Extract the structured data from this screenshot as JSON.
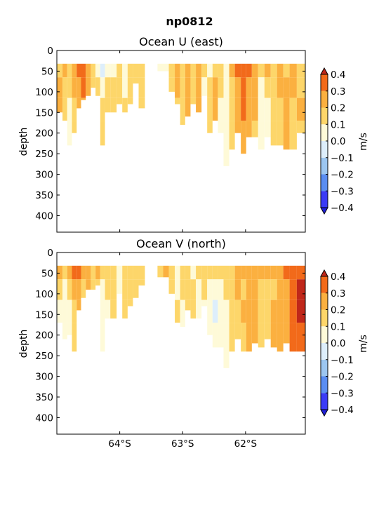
{
  "figure": {
    "title": "np0812"
  },
  "panels": [
    {
      "title": "Ocean U (east)",
      "ylabel": "depth",
      "colorbar_label": "m/s"
    },
    {
      "title": "Ocean V (north)",
      "ylabel": "depth",
      "colorbar_label": "m/s"
    }
  ],
  "colorbar": {
    "levels": [
      -0.4,
      -0.3,
      -0.2,
      -0.1,
      0.0,
      0.1,
      0.2,
      0.3,
      0.4
    ],
    "level_labels": [
      "−0.4",
      "−0.3",
      "−0.2",
      "−0.1",
      "0.0",
      "0.1",
      "0.2",
      "0.3",
      "0.4"
    ],
    "colors": [
      "#3b3bf6",
      "#5a8df2",
      "#9cc6f0",
      "#ddeefb",
      "#fefad8",
      "#fdd66a",
      "#fbb040",
      "#f26a1a"
    ],
    "extend_low_color": "#1f1fd8",
    "extend_high_color": "#c0271a"
  },
  "chart_data": [
    {
      "type": "heatmap",
      "title": "Ocean U (east)",
      "xlabel": "",
      "ylabel": "depth",
      "x_ticks": [
        -64,
        -63,
        -62
      ],
      "x_tick_labels": [
        "64°S",
        "63°S",
        "62°S"
      ],
      "xlim": [
        -65.0,
        -61.05
      ],
      "y_ticks": [
        0,
        50,
        100,
        150,
        200,
        250,
        300,
        350,
        400
      ],
      "ylim": [
        440,
        0
      ],
      "y_inverted": true,
      "units": "m/s",
      "columns": [
        {
          "lat": -64.95,
          "bottom": 150,
          "values": [
            0.1,
            0.2,
            0.2,
            0.2
          ]
        },
        {
          "lat": -64.87,
          "bottom": 170,
          "values": [
            0.2,
            0.1,
            0.1,
            0.1
          ]
        },
        {
          "lat": -64.8,
          "bottom": 230,
          "values": [
            0.1,
            0.1,
            0.0,
            0.0
          ]
        },
        {
          "lat": -64.72,
          "bottom": 200,
          "values": [
            0.2,
            0.2,
            0.1,
            0.1
          ]
        },
        {
          "lat": -64.65,
          "bottom": 140,
          "values": [
            0.3,
            0.2,
            0.2,
            0.1
          ]
        },
        {
          "lat": -64.58,
          "bottom": 120,
          "values": [
            0.3,
            0.3,
            0.2,
            0.1
          ]
        },
        {
          "lat": -64.5,
          "bottom": 110,
          "values": [
            0.2,
            0.2,
            0.1,
            0.1
          ]
        },
        {
          "lat": -64.42,
          "bottom": 90,
          "values": [
            0.1,
            0.1,
            0.1,
            0.1
          ]
        },
        {
          "lat": -64.35,
          "bottom": 110,
          "values": [
            0.0,
            0.1,
            0.1,
            0.1
          ]
        },
        {
          "lat": -64.27,
          "bottom": 230,
          "values": [
            -0.1,
            0.0,
            0.1,
            0.1
          ]
        },
        {
          "lat": -64.2,
          "bottom": 150,
          "values": [
            0.0,
            0.1,
            0.1,
            0.1
          ]
        },
        {
          "lat": -64.1,
          "bottom": 150,
          "values": [
            0.0,
            0.1,
            0.1,
            0.1
          ]
        },
        {
          "lat": -64.0,
          "bottom": 130,
          "values": [
            0.1,
            0.1,
            0.1,
            0.1
          ]
        },
        {
          "lat": -63.92,
          "bottom": 150,
          "values": [
            0.0,
            0.0,
            0.1,
            0.1
          ]
        },
        {
          "lat": -63.83,
          "bottom": 130,
          "values": [
            0.1,
            0.1,
            0.1,
            0.1
          ]
        },
        {
          "lat": -63.75,
          "bottom": 80,
          "values": [
            0.1,
            0.1,
            0.1,
            0.1
          ]
        },
        {
          "lat": -63.65,
          "bottom": 140,
          "values": [
            0.1,
            0.1,
            0.1,
            0.1
          ]
        },
        {
          "lat": -63.35,
          "bottom": 50,
          "values": [
            0.0,
            0.0,
            0.0,
            0.0
          ]
        },
        {
          "lat": -63.27,
          "bottom": 50,
          "values": [
            0.0,
            0.0,
            0.0,
            0.0
          ]
        },
        {
          "lat": -63.17,
          "bottom": 100,
          "values": [
            0.1,
            0.1,
            0.1,
            0.1
          ]
        },
        {
          "lat": -63.08,
          "bottom": 130,
          "values": [
            0.2,
            0.2,
            0.1,
            0.1
          ]
        },
        {
          "lat": -63.0,
          "bottom": 180,
          "values": [
            0.1,
            0.1,
            0.1,
            0.1
          ]
        },
        {
          "lat": -62.92,
          "bottom": 160,
          "values": [
            0.2,
            0.2,
            0.2,
            0.1
          ]
        },
        {
          "lat": -62.83,
          "bottom": 130,
          "values": [
            0.1,
            0.1,
            0.1,
            0.1
          ]
        },
        {
          "lat": -62.75,
          "bottom": 150,
          "values": [
            0.2,
            0.2,
            0.2,
            0.1
          ]
        },
        {
          "lat": -62.65,
          "bottom": 110,
          "values": [
            0.1,
            0.0,
            0.0,
            0.0
          ]
        },
        {
          "lat": -62.57,
          "bottom": 200,
          "values": [
            0.0,
            0.1,
            0.1,
            0.1
          ]
        },
        {
          "lat": -62.48,
          "bottom": 170,
          "values": [
            0.1,
            0.2,
            0.2,
            0.2
          ]
        },
        {
          "lat": -62.4,
          "bottom": 200,
          "values": [
            0.1,
            0.1,
            0.0,
            0.0
          ]
        },
        {
          "lat": -62.3,
          "bottom": 280,
          "values": [
            0.0,
            0.0,
            0.0,
            0.0
          ]
        },
        {
          "lat": -62.22,
          "bottom": 240,
          "values": [
            0.2,
            0.1,
            0.1,
            0.1
          ]
        },
        {
          "lat": -62.12,
          "bottom": 200,
          "values": [
            0.3,
            0.2,
            0.2,
            0.2
          ]
        },
        {
          "lat": -62.03,
          "bottom": 250,
          "values": [
            0.3,
            0.3,
            0.3,
            0.2
          ]
        },
        {
          "lat": -61.95,
          "bottom": 210,
          "values": [
            0.3,
            0.2,
            0.2,
            0.2
          ]
        },
        {
          "lat": -61.85,
          "bottom": 210,
          "values": [
            0.2,
            0.2,
            0.2,
            0.1
          ]
        },
        {
          "lat": -61.75,
          "bottom": 240,
          "values": [
            0.1,
            0.0,
            0.0,
            0.0
          ]
        },
        {
          "lat": -61.65,
          "bottom": 210,
          "values": [
            0.2,
            0.1,
            0.0,
            0.0
          ]
        },
        {
          "lat": -61.55,
          "bottom": 230,
          "values": [
            0.1,
            0.1,
            0.1,
            0.1
          ]
        },
        {
          "lat": -61.45,
          "bottom": 230,
          "values": [
            0.2,
            0.2,
            0.1,
            0.1
          ]
        },
        {
          "lat": -61.35,
          "bottom": 240,
          "values": [
            0.1,
            0.2,
            0.2,
            0.2
          ]
        },
        {
          "lat": -61.25,
          "bottom": 240,
          "values": [
            0.2,
            0.2,
            0.1,
            0.1
          ]
        },
        {
          "lat": -61.12,
          "bottom": 200,
          "values": [
            0.1,
            0.1,
            0.2,
            0.1
          ]
        }
      ]
    },
    {
      "type": "heatmap",
      "title": "Ocean V (north)",
      "xlabel": "",
      "ylabel": "depth",
      "x_ticks": [
        -64,
        -63,
        -62
      ],
      "x_tick_labels": [
        "64°S",
        "63°S",
        "62°S"
      ],
      "xlim": [
        -65.0,
        -61.05
      ],
      "y_ticks": [
        0,
        50,
        100,
        150,
        200,
        250,
        300,
        350,
        400
      ],
      "ylim": [
        440,
        0
      ],
      "y_inverted": true,
      "units": "m/s",
      "columns": [
        {
          "lat": -64.95,
          "bottom": 170,
          "values": [
            0.2,
            0.1,
            0.0,
            0.0
          ]
        },
        {
          "lat": -64.87,
          "bottom": 210,
          "values": [
            0.1,
            0.0,
            0.0,
            0.0
          ]
        },
        {
          "lat": -64.8,
          "bottom": 200,
          "values": [
            0.2,
            0.1,
            0.0,
            0.0
          ]
        },
        {
          "lat": -64.72,
          "bottom": 240,
          "values": [
            0.3,
            0.2,
            0.1,
            0.1
          ]
        },
        {
          "lat": -64.65,
          "bottom": 140,
          "values": [
            0.3,
            0.2,
            0.2,
            0.1
          ]
        },
        {
          "lat": -64.58,
          "bottom": 110,
          "values": [
            0.2,
            0.1,
            0.1,
            0.1
          ]
        },
        {
          "lat": -64.5,
          "bottom": 90,
          "values": [
            0.2,
            0.2,
            0.1,
            0.1
          ]
        },
        {
          "lat": -64.42,
          "bottom": 90,
          "values": [
            0.1,
            0.1,
            0.1,
            0.1
          ]
        },
        {
          "lat": -64.35,
          "bottom": 80,
          "values": [
            0.2,
            0.1,
            0.1,
            0.1
          ]
        },
        {
          "lat": -64.27,
          "bottom": 240,
          "values": [
            0.1,
            0.0,
            0.0,
            0.0
          ]
        },
        {
          "lat": -64.2,
          "bottom": 160,
          "values": [
            0.1,
            0.1,
            0.0,
            0.0
          ]
        },
        {
          "lat": -64.1,
          "bottom": 160,
          "values": [
            0.1,
            0.1,
            0.1,
            0.1
          ]
        },
        {
          "lat": -64.0,
          "bottom": 100,
          "values": [
            0.0,
            0.0,
            0.0,
            0.0
          ]
        },
        {
          "lat": -63.92,
          "bottom": 160,
          "values": [
            0.1,
            0.1,
            0.1,
            0.1
          ]
        },
        {
          "lat": -63.83,
          "bottom": 130,
          "values": [
            0.1,
            0.1,
            0.1,
            0.1
          ]
        },
        {
          "lat": -63.75,
          "bottom": 110,
          "values": [
            0.1,
            0.1,
            0.1,
            0.1
          ]
        },
        {
          "lat": -63.65,
          "bottom": 80,
          "values": [
            0.1,
            0.1,
            0.1,
            0.1
          ]
        },
        {
          "lat": -63.35,
          "bottom": 60,
          "values": [
            0.1,
            0.1,
            0.1,
            0.1
          ]
        },
        {
          "lat": -63.27,
          "bottom": 60,
          "values": [
            0.2,
            0.2,
            0.2,
            0.1
          ]
        },
        {
          "lat": -63.17,
          "bottom": 100,
          "values": [
            0.1,
            0.1,
            0.1,
            0.1
          ]
        },
        {
          "lat": -63.08,
          "bottom": 170,
          "values": [
            0.0,
            0.0,
            0.1,
            0.1
          ]
        },
        {
          "lat": -63.0,
          "bottom": 180,
          "values": [
            0.1,
            0.1,
            0.0,
            0.0
          ]
        },
        {
          "lat": -62.92,
          "bottom": 140,
          "values": [
            0.1,
            0.1,
            0.1,
            0.1
          ]
        },
        {
          "lat": -62.83,
          "bottom": 160,
          "values": [
            0.0,
            0.1,
            0.1,
            0.1
          ]
        },
        {
          "lat": -62.75,
          "bottom": 160,
          "values": [
            0.1,
            0.0,
            0.0,
            0.0
          ]
        },
        {
          "lat": -62.65,
          "bottom": 130,
          "values": [
            0.1,
            0.1,
            0.0,
            0.0
          ]
        },
        {
          "lat": -62.57,
          "bottom": 200,
          "values": [
            0.1,
            0.0,
            0.0,
            0.0
          ]
        },
        {
          "lat": -62.48,
          "bottom": 230,
          "values": [
            0.1,
            0.0,
            -0.1,
            0.0
          ]
        },
        {
          "lat": -62.4,
          "bottom": 230,
          "values": [
            0.1,
            0.0,
            0.0,
            0.0
          ]
        },
        {
          "lat": -62.3,
          "bottom": 280,
          "values": [
            0.1,
            0.1,
            0.0,
            0.0
          ]
        },
        {
          "lat": -62.22,
          "bottom": 240,
          "values": [
            0.1,
            0.1,
            0.1,
            0.1
          ]
        },
        {
          "lat": -62.12,
          "bottom": 210,
          "values": [
            0.2,
            0.2,
            0.1,
            0.1
          ]
        },
        {
          "lat": -62.03,
          "bottom": 240,
          "values": [
            0.2,
            0.1,
            0.2,
            0.1
          ]
        },
        {
          "lat": -61.95,
          "bottom": 240,
          "values": [
            0.2,
            0.2,
            0.2,
            0.2
          ]
        },
        {
          "lat": -61.85,
          "bottom": 220,
          "values": [
            0.2,
            0.2,
            0.2,
            0.2
          ]
        },
        {
          "lat": -61.75,
          "bottom": 230,
          "values": [
            0.2,
            0.1,
            0.1,
            0.1
          ]
        },
        {
          "lat": -61.65,
          "bottom": 210,
          "values": [
            0.2,
            0.1,
            0.1,
            0.1
          ]
        },
        {
          "lat": -61.55,
          "bottom": 230,
          "values": [
            0.2,
            0.1,
            0.2,
            0.2
          ]
        },
        {
          "lat": -61.45,
          "bottom": 240,
          "values": [
            0.2,
            0.2,
            0.2,
            0.2
          ]
        },
        {
          "lat": -61.35,
          "bottom": 220,
          "values": [
            0.3,
            0.2,
            0.2,
            0.2
          ]
        },
        {
          "lat": -61.25,
          "bottom": 240,
          "values": [
            0.3,
            0.3,
            0.3,
            0.3
          ]
        },
        {
          "lat": -61.12,
          "bottom": 240,
          "values": [
            0.3,
            0.4,
            0.4,
            0.3
          ]
        }
      ]
    }
  ]
}
